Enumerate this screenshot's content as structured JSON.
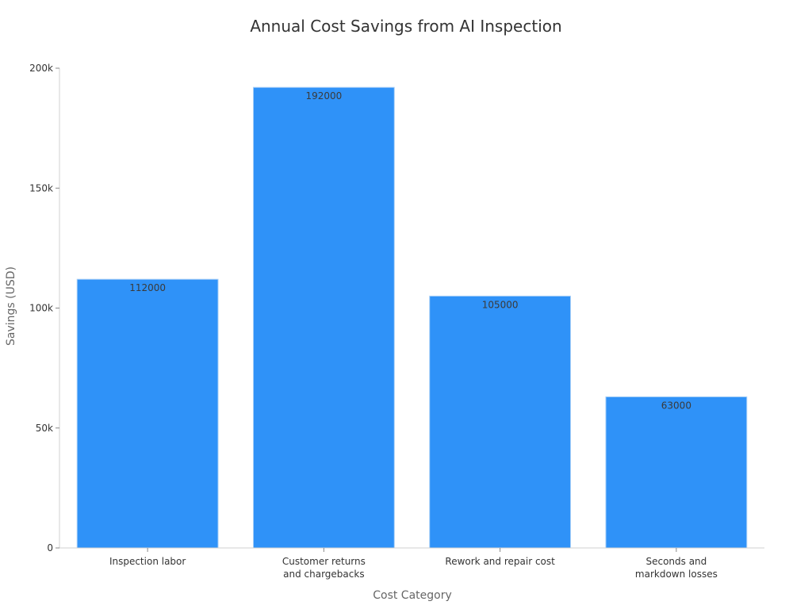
{
  "chart_data": {
    "type": "bar",
    "title": "Annual Cost Savings from AI Inspection",
    "xlabel": "Cost Category",
    "ylabel": "Savings (USD)",
    "categories": [
      [
        "Inspection labor"
      ],
      [
        "Customer returns",
        "and chargebacks"
      ],
      [
        "Rework and repair cost"
      ],
      [
        "Seconds and",
        "markdown losses"
      ]
    ],
    "values": [
      112000,
      192000,
      105000,
      63000
    ],
    "value_labels": [
      "112000",
      "192000",
      "105000",
      "63000"
    ],
    "ylim": [
      0,
      200000
    ],
    "yticks": [
      0,
      50000,
      100000,
      150000,
      200000
    ],
    "ytick_labels": [
      "0",
      "50k",
      "100k",
      "150k",
      "200k"
    ],
    "grid": false,
    "bar_color": "#2f92f8",
    "bar_edge_color": "#a8cff7"
  }
}
